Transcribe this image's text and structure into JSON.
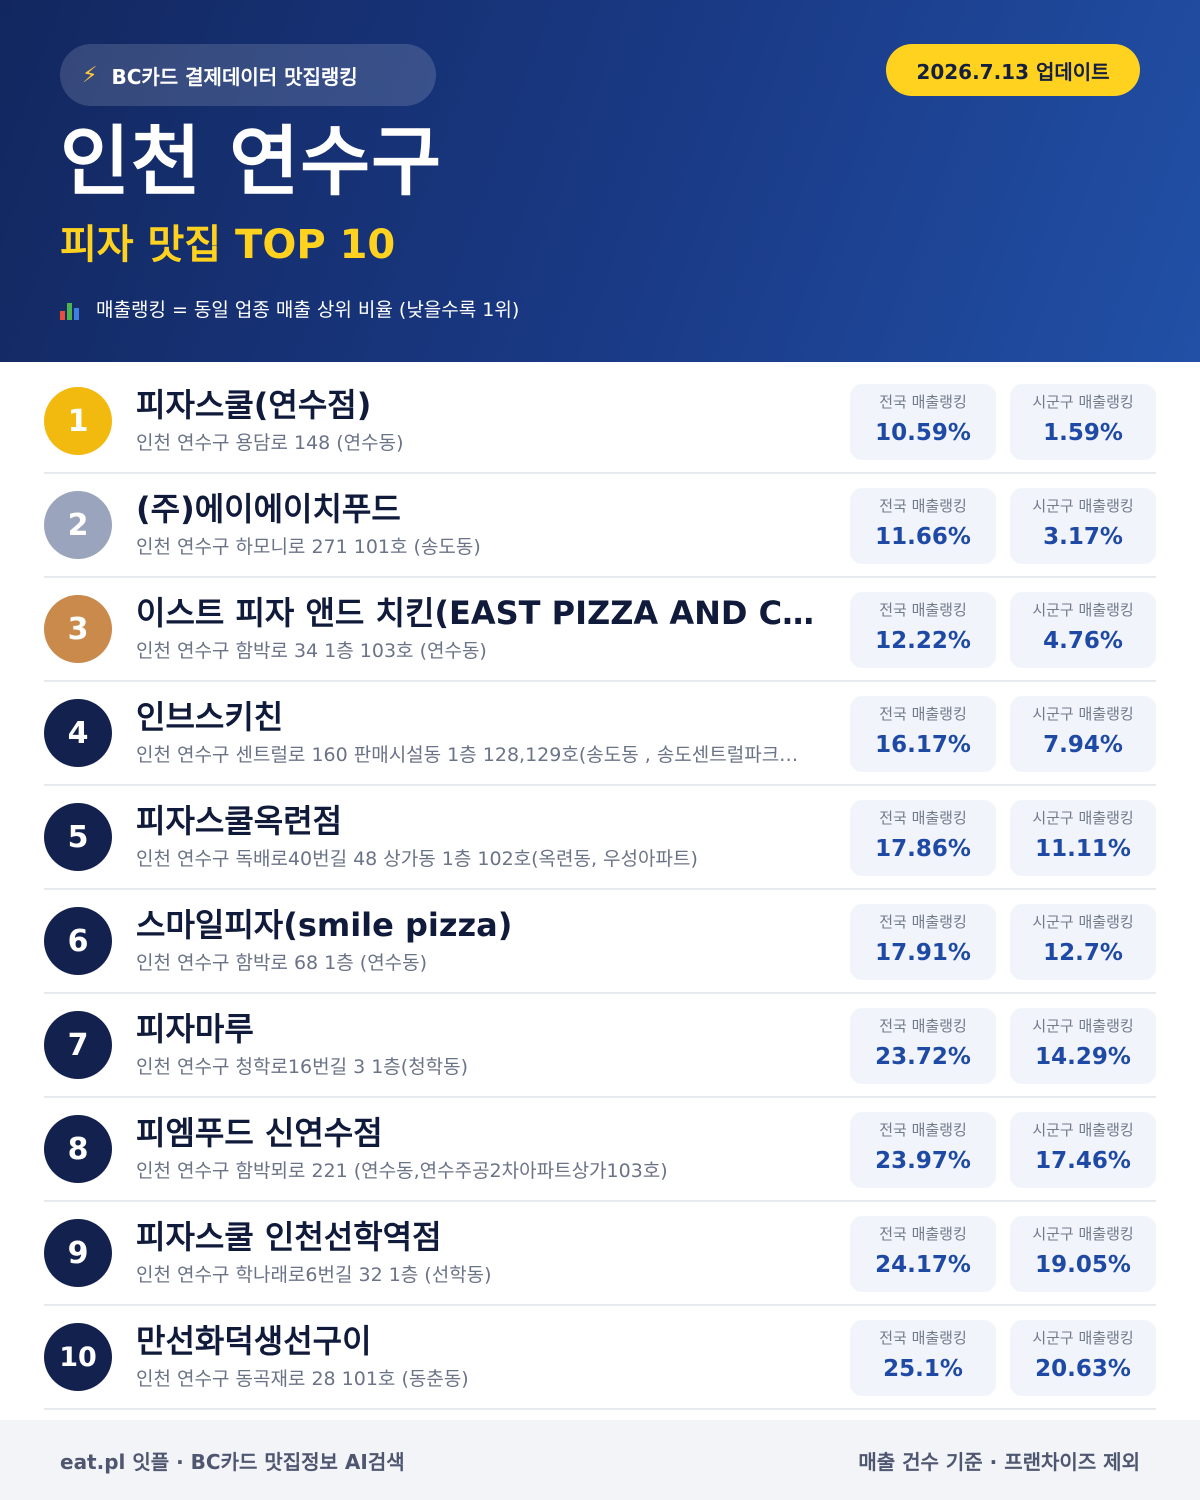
{
  "header": {
    "source_icon": "lightning-bolt-icon",
    "source_label": "BC카드 결제데이터 맛집랭킹",
    "update_label": "2026.7.13 업데이트",
    "region": "인천 연수구",
    "subtitle": "피자 맛집 TOP 10",
    "note_icon": "bar-chart-icon",
    "note": "매출랭킹 = 동일 업종 매출 상위 비율 (낮을수록 1위)"
  },
  "colors": {
    "header_start": "#12275f",
    "header_end": "#2150a6",
    "accent_yellow": "#ffd21f",
    "rank_gold": "#f2b90f",
    "rank_silver": "#9aa5bd",
    "rank_bronze": "#c98a4c",
    "rank_navy": "#13214f",
    "value_blue": "#1e49a5"
  },
  "labels": {
    "national": "전국 매출랭킹",
    "local": "시군구 매출랭킹"
  },
  "restaurants": [
    {
      "rank": "1",
      "name": "피자스쿨(연수점)",
      "address": "인천 연수구 용담로 148 (연수동)",
      "national": "10.59%",
      "local": "1.59%"
    },
    {
      "rank": "2",
      "name": "(주)에이에이치푸드",
      "address": "인천 연수구 하모니로 271 101호 (송도동)",
      "national": "11.66%",
      "local": "3.17%"
    },
    {
      "rank": "3",
      "name": "이스트 피자 앤드 치킨(EAST PIZZA AND CHI…",
      "address": "인천 연수구 함박로 34 1층 103호 (연수동)",
      "national": "12.22%",
      "local": "4.76%"
    },
    {
      "rank": "4",
      "name": "인브스키친",
      "address": "인천 연수구 센트럴로 160 판매시설동 1층 128,129호(송도동 , 송도센트럴파크…",
      "national": "16.17%",
      "local": "7.94%"
    },
    {
      "rank": "5",
      "name": "피자스쿨옥련점",
      "address": "인천 연수구 독배로40번길 48 상가동 1층 102호(옥련동, 우성아파트)",
      "national": "17.86%",
      "local": "11.11%"
    },
    {
      "rank": "6",
      "name": "스마일피자(smile pizza)",
      "address": "인천 연수구 함박로 68 1층 (연수동)",
      "national": "17.91%",
      "local": "12.7%"
    },
    {
      "rank": "7",
      "name": "피자마루",
      "address": "인천 연수구 청학로16번길 3 1층(청학동)",
      "national": "23.72%",
      "local": "14.29%"
    },
    {
      "rank": "8",
      "name": "피엠푸드 신연수점",
      "address": "인천 연수구 함박뫼로 221 (연수동,연수주공2차아파트상가103호)",
      "national": "23.97%",
      "local": "17.46%"
    },
    {
      "rank": "9",
      "name": "피자스쿨 인천선학역점",
      "address": "인천 연수구 학나래로6번길 32 1층 (선학동)",
      "national": "24.17%",
      "local": "19.05%"
    },
    {
      "rank": "10",
      "name": "만선화덕생선구이",
      "address": "인천 연수구 동곡재로 28 101호 (동춘동)",
      "national": "25.1%",
      "local": "20.63%"
    }
  ],
  "footer": {
    "left": "eat.pl 잇플 · BC카드 맛집정보 AI검색",
    "right": "매출 건수 기준 · 프랜차이즈 제외"
  }
}
